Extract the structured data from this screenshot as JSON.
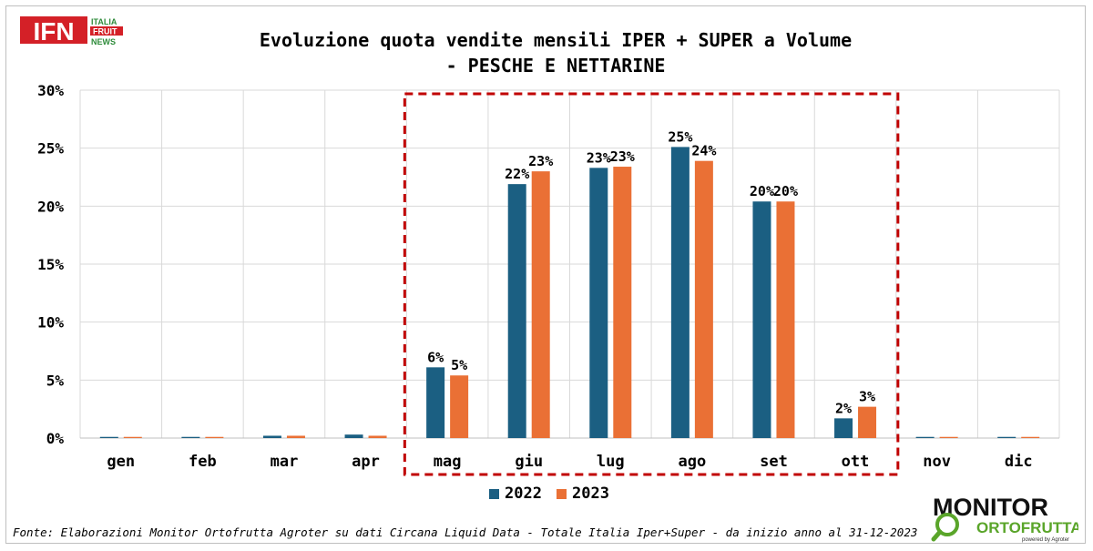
{
  "logo_ifn": {
    "mark": "IFN",
    "lines": [
      "ITALIA",
      "FRUIT",
      "NEWS"
    ]
  },
  "title_line1": "Evoluzione quota vendite mensili IPER + SUPER a Volume",
  "title_line2": "- PESCHE E NETTARINE",
  "footer_note": "Fonte: Elaborazioni Monitor Ortofrutta Agroter su dati Circana Liquid Data - Totale Italia Iper+Super -  da inizio anno al 31-12-2023",
  "logo_monitor": {
    "word1": "MONITOR",
    "word2": "ORTOFRUTTA",
    "byline": "powered by Agroter"
  },
  "colors": {
    "series_2022": "#1b5f82",
    "series_2023": "#ea7035",
    "highlight_box": "#c00000",
    "grid": "#d9d9d9",
    "ifn_red": "#d42027",
    "ifn_green": "#2e8b3a",
    "monitor_green": "#5aa52a"
  },
  "chart_data": {
    "type": "bar",
    "categories": [
      "gen",
      "feb",
      "mar",
      "apr",
      "mag",
      "giu",
      "lug",
      "ago",
      "set",
      "ott",
      "nov",
      "dic"
    ],
    "series": [
      {
        "name": "2022",
        "values": [
          0.1,
          0.1,
          0.2,
          0.3,
          6.1,
          21.9,
          23.3,
          25.1,
          20.4,
          1.7,
          0.1,
          0.1
        ],
        "labels": [
          "",
          "",
          "",
          "",
          "6%",
          "22%",
          "23%",
          "25%",
          "20%",
          "2%",
          "",
          ""
        ]
      },
      {
        "name": "2023",
        "values": [
          0.1,
          0.1,
          0.2,
          0.2,
          5.4,
          23.0,
          23.4,
          23.9,
          20.4,
          2.7,
          0.1,
          0.1
        ],
        "labels": [
          "",
          "",
          "",
          "",
          "5%",
          "23%",
          "23%",
          "24%",
          "20%",
          "3%",
          "",
          ""
        ]
      }
    ],
    "y_ticks": [
      "0%",
      "5%",
      "10%",
      "15%",
      "20%",
      "25%",
      "30%"
    ],
    "ylim": [
      0,
      30
    ],
    "grid": true,
    "legend_position": "bottom",
    "highlight_range": [
      "mag",
      "ott"
    ]
  }
}
